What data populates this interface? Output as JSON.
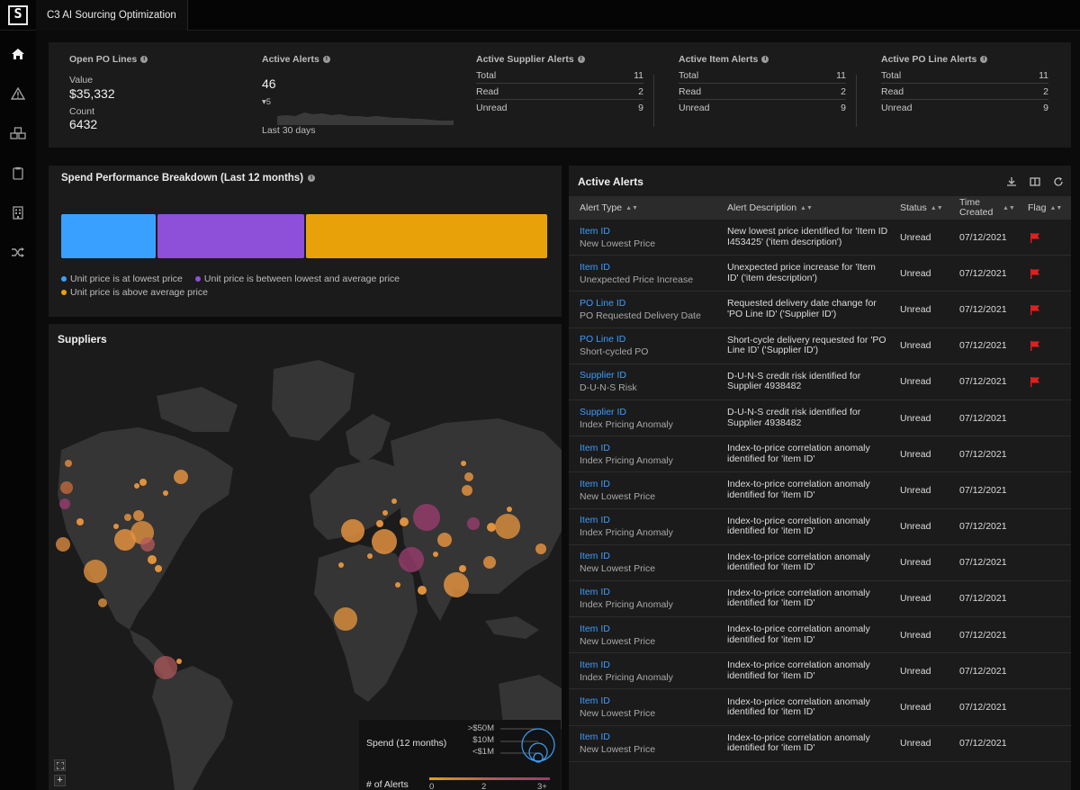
{
  "app": {
    "title": "C3 AI Sourcing Optimization"
  },
  "sidebar": {
    "items": [
      {
        "icon": "home-icon"
      },
      {
        "icon": "warning-icon"
      },
      {
        "icon": "boxes-icon"
      },
      {
        "icon": "clipboard-icon"
      },
      {
        "icon": "building-icon"
      },
      {
        "icon": "shuffle-icon"
      }
    ]
  },
  "summary": {
    "open_po": {
      "title": "Open PO Lines",
      "value_label": "Value",
      "value": "$35,332",
      "count_label": "Count",
      "count": "6432"
    },
    "active_alerts": {
      "title": "Active Alerts",
      "value": "46",
      "delta": "5",
      "period": "Last 30 days"
    },
    "supplier_alerts": {
      "title": "Active Supplier Alerts",
      "rows": [
        [
          "Total",
          "11"
        ],
        [
          "Read",
          "2"
        ],
        [
          "Unread",
          "9"
        ]
      ]
    },
    "item_alerts": {
      "title": "Active Item Alerts",
      "rows": [
        [
          "Total",
          "11"
        ],
        [
          "Read",
          "2"
        ],
        [
          "Unread",
          "9"
        ]
      ]
    },
    "po_line_alerts": {
      "title": "Active PO Line Alerts",
      "rows": [
        [
          "Total",
          "11"
        ],
        [
          "Read",
          "2"
        ],
        [
          "Unread",
          "9"
        ]
      ]
    }
  },
  "spend": {
    "title": "Spend Performance Breakdown (Last 12 months)",
    "segments": [
      {
        "label": "Unit price is at lowest price",
        "share": 0.198,
        "color": "#3aa0ff"
      },
      {
        "label": "Unit price is between lowest and average price",
        "share": 0.304,
        "color": "#8e4fd9"
      },
      {
        "label": "Unit price is above average price",
        "share": 0.498,
        "color": "#e9a10a"
      }
    ]
  },
  "map": {
    "title": "Suppliers",
    "legend": {
      "spend_title": "Spend (12 months)",
      "spend_levels": [
        ">$50M",
        "$10M",
        "<$1M"
      ],
      "alerts_title": "# of Alerts",
      "alerts_ticks": [
        "0",
        "2",
        "3+"
      ]
    },
    "zoom_in": "+"
  },
  "alerts": {
    "title": "Active Alerts",
    "columns": {
      "type": "Alert Type",
      "desc": "Alert Description",
      "status": "Status",
      "time": "Time Created",
      "flag": "Flag"
    },
    "rows": [
      {
        "type": "Item ID",
        "sub": "New Lowest Price",
        "desc": "New lowest price identified for 'Item ID I453425' ('item description')",
        "status": "Unread",
        "time": "07/12/2021",
        "flag": true
      },
      {
        "type": "Item ID",
        "sub": "Unexpected Price Increase",
        "desc": "Unexpected price increase for 'Item ID' ('item description')",
        "status": "Unread",
        "time": "07/12/2021",
        "flag": true
      },
      {
        "type": "PO Line ID",
        "sub": "PO Requested Delivery Date",
        "desc": "Requested delivery date change for 'PO Line ID' ('Supplier ID')",
        "status": "Unread",
        "time": "07/12/2021",
        "flag": true
      },
      {
        "type": "PO Line ID",
        "sub": "Short-cycled PO",
        "desc": "Short-cycle delivery requested for 'PO Line ID' ('Supplier ID')",
        "status": "Unread",
        "time": "07/12/2021",
        "flag": true
      },
      {
        "type": "Supplier ID",
        "sub": "D-U-N-S Risk",
        "desc": "D-U-N-S credit risk identified for Supplier 4938482",
        "status": "Unread",
        "time": "07/12/2021",
        "flag": true
      },
      {
        "type": "Supplier ID",
        "sub": "Index Pricing Anomaly",
        "desc": "D-U-N-S credit risk identified for Supplier 4938482",
        "status": "Unread",
        "time": "07/12/2021",
        "flag": false
      },
      {
        "type": "Item ID",
        "sub": "Index Pricing Anomaly",
        "desc": "Index-to-price correlation anomaly identified for 'item ID'",
        "status": "Unread",
        "time": "07/12/2021",
        "flag": false
      },
      {
        "type": "Item ID",
        "sub": "New Lowest Price",
        "desc": "Index-to-price correlation anomaly identified for 'item ID'",
        "status": "Unread",
        "time": "07/12/2021",
        "flag": false
      },
      {
        "type": "Item ID",
        "sub": "Index Pricing Anomaly",
        "desc": "Index-to-price correlation anomaly identified for 'item ID'",
        "status": "Unread",
        "time": "07/12/2021",
        "flag": false
      },
      {
        "type": "Item ID",
        "sub": "New Lowest Price",
        "desc": "Index-to-price correlation anomaly identified for 'item ID'",
        "status": "Unread",
        "time": "07/12/2021",
        "flag": false
      },
      {
        "type": "Item ID",
        "sub": "Index Pricing Anomaly",
        "desc": "Index-to-price correlation anomaly identified for 'item ID'",
        "status": "Unread",
        "time": "07/12/2021",
        "flag": false
      },
      {
        "type": "Item ID",
        "sub": "New Lowest Price",
        "desc": "Index-to-price correlation anomaly identified for 'item ID'",
        "status": "Unread",
        "time": "07/12/2021",
        "flag": false
      },
      {
        "type": "Item ID",
        "sub": "Index Pricing Anomaly",
        "desc": "Index-to-price correlation anomaly identified for 'item ID'",
        "status": "Unread",
        "time": "07/12/2021",
        "flag": false
      },
      {
        "type": "Item ID",
        "sub": "New Lowest Price",
        "desc": "Index-to-price correlation anomaly identified for 'item ID'",
        "status": "Unread",
        "time": "07/12/2021",
        "flag": false
      },
      {
        "type": "Item ID",
        "sub": "New Lowest Price",
        "desc": "Index-to-price correlation anomaly identified for 'item ID'",
        "status": "Unread",
        "time": "07/12/2021",
        "flag": false
      }
    ]
  },
  "colors": {
    "link": "#3d9bff",
    "flag": "#e02020",
    "orange": "#e9a10a",
    "purple": "#8e4fd9",
    "blue": "#3aa0ff"
  }
}
